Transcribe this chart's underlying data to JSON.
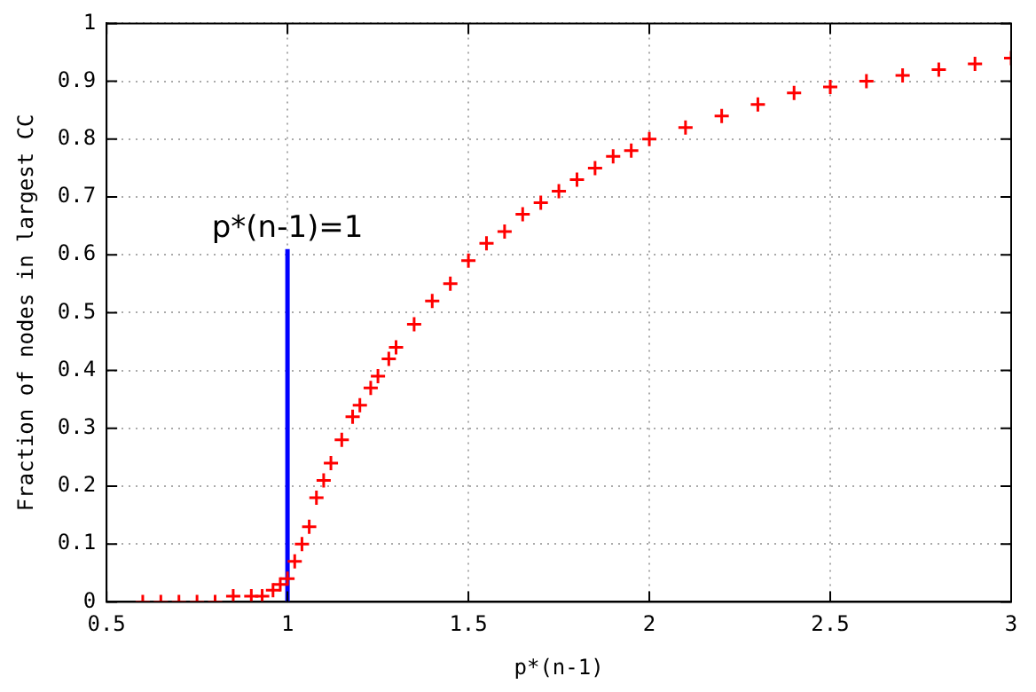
{
  "chart_data": {
    "type": "scatter",
    "xlabel": "p*(n-1)",
    "ylabel": "Fraction of nodes in largest CC",
    "xlim": [
      0.5,
      3
    ],
    "xticks": [
      0.5,
      1,
      1.5,
      2,
      2.5,
      3
    ],
    "ylim": [
      0,
      1
    ],
    "yticks": [
      0,
      0.1,
      0.2,
      0.3,
      0.4,
      0.5,
      0.6,
      0.7,
      0.8,
      0.9,
      1
    ],
    "grid": true,
    "legend": false,
    "marker": "cross",
    "series": [
      {
        "type": "scatter",
        "color": "#ff0000",
        "x": [
          0.6,
          0.65,
          0.7,
          0.75,
          0.8,
          0.85,
          0.9,
          0.93,
          0.96,
          0.98,
          1.0,
          1.02,
          1.04,
          1.06,
          1.08,
          1.1,
          1.12,
          1.15,
          1.18,
          1.2,
          1.23,
          1.25,
          1.28,
          1.3,
          1.35,
          1.4,
          1.45,
          1.5,
          1.55,
          1.6,
          1.65,
          1.7,
          1.75,
          1.8,
          1.85,
          1.9,
          1.95,
          2.0,
          2.1,
          2.2,
          2.3,
          2.4,
          2.5,
          2.6,
          2.7,
          2.8,
          2.9,
          3.0
        ],
        "values": [
          0,
          0,
          0,
          0,
          0,
          0.01,
          0.01,
          0.01,
          0.02,
          0.03,
          0.04,
          0.07,
          0.1,
          0.13,
          0.18,
          0.21,
          0.24,
          0.28,
          0.32,
          0.34,
          0.37,
          0.39,
          0.42,
          0.44,
          0.48,
          0.52,
          0.55,
          0.59,
          0.62,
          0.64,
          0.67,
          0.69,
          0.71,
          0.73,
          0.75,
          0.77,
          0.78,
          0.8,
          0.82,
          0.84,
          0.86,
          0.88,
          0.89,
          0.9,
          0.91,
          0.92,
          0.93,
          0.94
        ]
      },
      {
        "type": "line",
        "color": "#0000ff",
        "marker": "none",
        "line_style": "solid",
        "x": [
          1,
          1
        ],
        "values": [
          0,
          0.61
        ]
      }
    ],
    "annotations": [
      {
        "text": "p*(n-1)=1",
        "x": 1,
        "y": 0.61
      }
    ]
  }
}
